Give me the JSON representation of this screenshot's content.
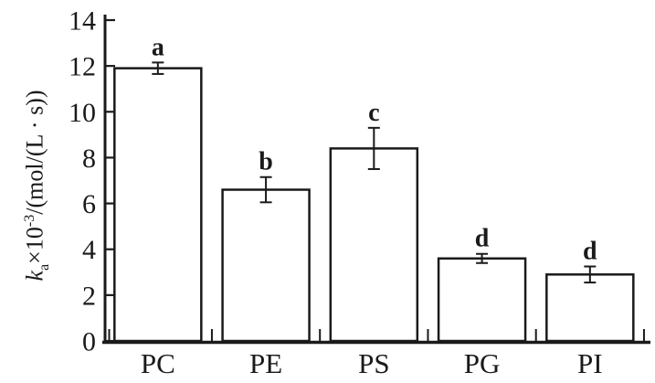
{
  "figure": {
    "background": "#ffffff",
    "ink": "#1a1a1a"
  },
  "chart_data": {
    "type": "bar",
    "title": "",
    "categories": [
      "PC",
      "PE",
      "PS",
      "PG",
      "PI"
    ],
    "values": [
      11.9,
      6.6,
      8.4,
      3.6,
      2.9
    ],
    "error_bars": [
      0.25,
      0.55,
      0.9,
      0.2,
      0.35
    ],
    "sig_letters": [
      "a",
      "b",
      "c",
      "d",
      "d"
    ],
    "xlabel": "",
    "ylabel": "ka×10-3/(mol/(L · s))",
    "ylabel_parts": {
      "symbol": "k",
      "subscript": "a",
      "multiplier": "×10",
      "exponent": "-3",
      "units": "/(mol/(L · s))"
    },
    "yticks": [
      0,
      2,
      4,
      6,
      8,
      10,
      12,
      14
    ],
    "ylim": [
      0,
      14
    ],
    "grid": false,
    "legend": false,
    "bar_fill": "#ffffff",
    "bar_stroke": "#1a1a1a"
  }
}
